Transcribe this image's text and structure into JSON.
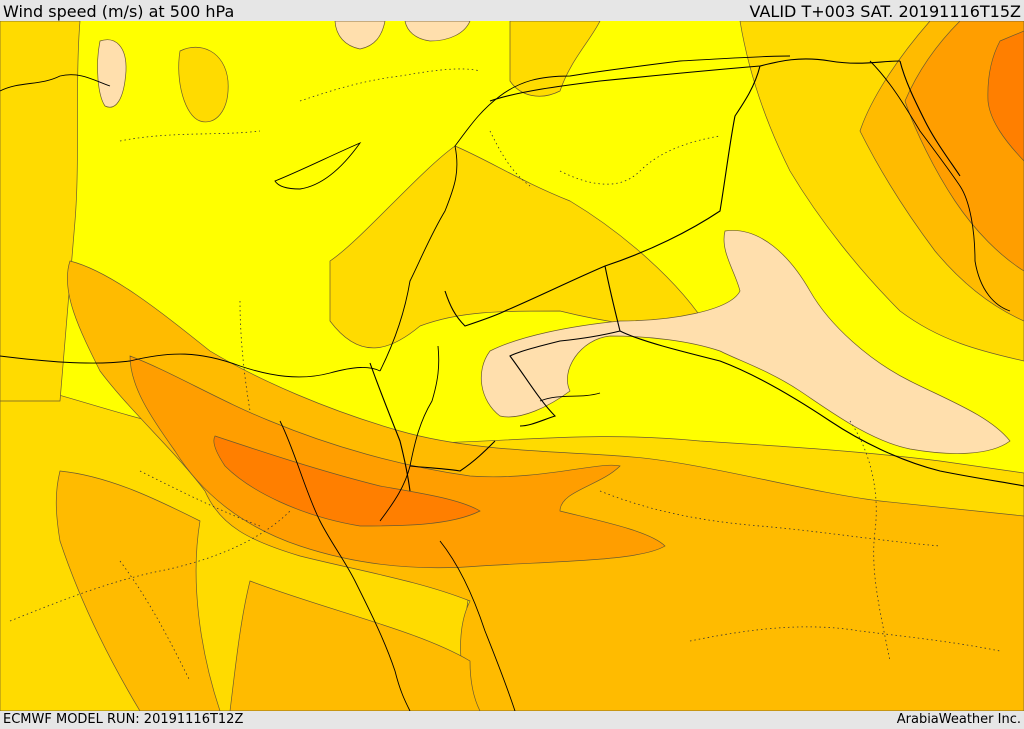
{
  "header": {
    "title": "Wind speed (m/s) at 500 hPa",
    "valid": "VALID T+003 SAT. 20191116T15Z"
  },
  "footer": {
    "model_run": "ECMWF MODEL RUN: 20191116T12Z",
    "brand": "ArabiaWeather Inc."
  },
  "colors": {
    "background": "#e6e6e6",
    "band_lowest": "#ffdfad",
    "band_low": "#ffff00",
    "band_mid": "#ffdb00",
    "band_high": "#ffbb00",
    "band_higher": "#ff9e00",
    "band_highest": "#ff7f00"
  },
  "map": {
    "field": "wind speed at 500 hPa",
    "has_legend": false
  }
}
